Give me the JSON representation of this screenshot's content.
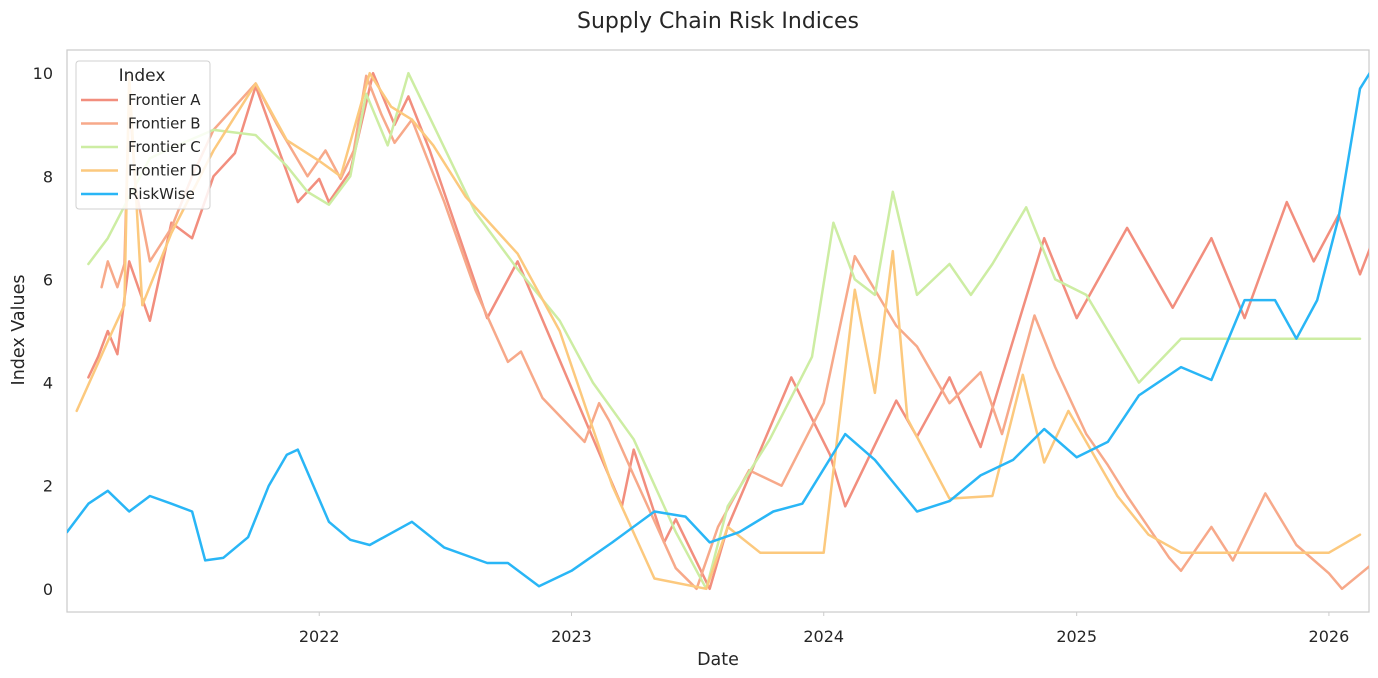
{
  "chart_data": {
    "type": "line",
    "title": "Supply Chain Risk Indices",
    "xlabel": "Date",
    "ylabel": "Index Values",
    "x_axis_type": "date",
    "xlim": [
      "2021-01-01",
      "2026-02-28"
    ],
    "ylim": [
      -0.45,
      10.45
    ],
    "x_ticks": [
      "2022-01-01",
      "2023-01-01",
      "2024-01-01",
      "2025-01-01",
      "2026-01-01"
    ],
    "x_tick_labels": [
      "2022",
      "2023",
      "2024",
      "2025",
      "2026"
    ],
    "y_ticks": [
      0,
      2,
      4,
      6,
      8,
      10
    ],
    "grid": false,
    "legend": {
      "title": "Index",
      "position": "upper-left"
    },
    "series": [
      {
        "name": "Frontier A",
        "color": "#F28E7E",
        "points": [
          [
            "2021-02-01",
            4.1
          ],
          [
            "2021-02-15",
            4.5
          ],
          [
            "2021-03-01",
            5.0
          ],
          [
            "2021-03-15",
            4.55
          ],
          [
            "2021-04-01",
            6.35
          ],
          [
            "2021-05-01",
            5.2
          ],
          [
            "2021-06-01",
            7.1
          ],
          [
            "2021-07-01",
            6.8
          ],
          [
            "2021-08-01",
            8.0
          ],
          [
            "2021-09-01",
            8.45
          ],
          [
            "2021-10-01",
            9.75
          ],
          [
            "2021-11-01",
            8.6
          ],
          [
            "2021-12-01",
            7.5
          ],
          [
            "2022-01-01",
            7.95
          ],
          [
            "2022-01-15",
            7.5
          ],
          [
            "2022-02-15",
            8.1
          ],
          [
            "2022-03-20",
            10.0
          ],
          [
            "2022-04-20",
            9.0
          ],
          [
            "2022-05-10",
            9.55
          ],
          [
            "2022-06-10",
            8.5
          ],
          [
            "2022-09-01",
            5.25
          ],
          [
            "2022-10-15",
            6.35
          ],
          [
            "2023-03-15",
            1.6
          ],
          [
            "2023-04-01",
            2.7
          ],
          [
            "2023-05-15",
            0.9
          ],
          [
            "2023-06-01",
            1.35
          ],
          [
            "2023-07-20",
            0.0
          ],
          [
            "2023-08-15",
            1.2
          ],
          [
            "2023-11-15",
            4.1
          ],
          [
            "2024-01-10",
            2.6
          ],
          [
            "2024-02-01",
            1.6
          ],
          [
            "2024-04-15",
            3.65
          ],
          [
            "2024-05-15",
            2.95
          ],
          [
            "2024-07-01",
            4.1
          ],
          [
            "2024-08-15",
            2.75
          ],
          [
            "2024-11-15",
            6.8
          ],
          [
            "2025-01-01",
            5.25
          ],
          [
            "2025-03-15",
            7.0
          ],
          [
            "2025-05-20",
            5.45
          ],
          [
            "2025-07-15",
            6.8
          ],
          [
            "2025-09-01",
            5.25
          ],
          [
            "2025-11-01",
            7.5
          ],
          [
            "2025-12-10",
            6.35
          ],
          [
            "2026-01-15",
            7.25
          ],
          [
            "2026-02-15",
            6.1
          ],
          [
            "2026-03-20",
            7.25
          ]
        ]
      },
      {
        "name": "Frontier B",
        "color": "#F7A98A",
        "points": [
          [
            "2021-02-20",
            5.85
          ],
          [
            "2021-03-01",
            6.35
          ],
          [
            "2021-03-15",
            5.85
          ],
          [
            "2021-03-25",
            6.3
          ],
          [
            "2021-04-01",
            9.6
          ],
          [
            "2021-04-10",
            7.8
          ],
          [
            "2021-05-01",
            6.35
          ],
          [
            "2021-06-01",
            7.0
          ],
          [
            "2021-07-01",
            8.0
          ],
          [
            "2021-08-01",
            8.9
          ],
          [
            "2021-10-01",
            9.8
          ],
          [
            "2021-11-01",
            9.0
          ],
          [
            "2021-12-15",
            8.0
          ],
          [
            "2022-01-10",
            8.5
          ],
          [
            "2022-02-01",
            7.95
          ],
          [
            "2022-02-20",
            8.5
          ],
          [
            "2022-03-10",
            9.95
          ],
          [
            "2022-04-01",
            9.2
          ],
          [
            "2022-04-20",
            8.65
          ],
          [
            "2022-05-15",
            9.1
          ],
          [
            "2022-07-01",
            7.5
          ],
          [
            "2022-08-15",
            5.8
          ],
          [
            "2022-10-01",
            4.4
          ],
          [
            "2022-10-20",
            4.6
          ],
          [
            "2022-11-20",
            3.7
          ],
          [
            "2023-01-20",
            2.85
          ],
          [
            "2023-02-10",
            3.6
          ],
          [
            "2023-02-25",
            3.25
          ],
          [
            "2023-04-01",
            2.2
          ],
          [
            "2023-06-01",
            0.4
          ],
          [
            "2023-07-01",
            0.0
          ],
          [
            "2023-08-01",
            1.2
          ],
          [
            "2023-09-15",
            2.3
          ],
          [
            "2023-11-01",
            2.0
          ],
          [
            "2024-01-01",
            3.6
          ],
          [
            "2024-02-15",
            6.45
          ],
          [
            "2024-04-15",
            5.1
          ],
          [
            "2024-05-15",
            4.7
          ],
          [
            "2024-07-01",
            3.6
          ],
          [
            "2024-08-15",
            4.2
          ],
          [
            "2024-09-15",
            3.0
          ],
          [
            "2024-11-01",
            5.3
          ],
          [
            "2024-12-01",
            4.3
          ],
          [
            "2025-01-15",
            3.0
          ],
          [
            "2025-02-15",
            2.4
          ],
          [
            "2025-03-15",
            1.8
          ],
          [
            "2025-05-15",
            0.6
          ],
          [
            "2025-06-01",
            0.35
          ],
          [
            "2025-07-15",
            1.2
          ],
          [
            "2025-08-15",
            0.55
          ],
          [
            "2025-10-01",
            1.85
          ],
          [
            "2025-11-15",
            0.85
          ],
          [
            "2026-01-01",
            0.3
          ],
          [
            "2026-01-20",
            0.0
          ],
          [
            "2026-03-20",
            0.65
          ]
        ]
      },
      {
        "name": "Frontier C",
        "color": "#CDEDA3",
        "points": [
          [
            "2021-02-01",
            6.3
          ],
          [
            "2021-03-01",
            6.8
          ],
          [
            "2021-04-01",
            7.6
          ],
          [
            "2021-05-01",
            8.35
          ],
          [
            "2021-06-01",
            8.55
          ],
          [
            "2021-08-01",
            8.9
          ],
          [
            "2021-10-01",
            8.8
          ],
          [
            "2021-11-15",
            8.2
          ],
          [
            "2021-12-15",
            7.7
          ],
          [
            "2022-01-15",
            7.45
          ],
          [
            "2022-02-15",
            8.0
          ],
          [
            "2022-03-10",
            9.6
          ],
          [
            "2022-04-10",
            8.6
          ],
          [
            "2022-05-10",
            10.0
          ],
          [
            "2022-06-15",
            9.0
          ],
          [
            "2022-08-15",
            7.3
          ],
          [
            "2022-10-15",
            6.2
          ],
          [
            "2022-12-15",
            5.2
          ],
          [
            "2023-02-01",
            4.0
          ],
          [
            "2023-04-01",
            2.9
          ],
          [
            "2023-06-01",
            1.1
          ],
          [
            "2023-07-15",
            0.0
          ],
          [
            "2023-08-15",
            1.6
          ],
          [
            "2023-10-15",
            2.9
          ],
          [
            "2023-12-15",
            4.5
          ],
          [
            "2024-01-15",
            7.1
          ],
          [
            "2024-02-15",
            6.0
          ],
          [
            "2024-03-15",
            5.7
          ],
          [
            "2024-04-10",
            7.7
          ],
          [
            "2024-05-15",
            5.7
          ],
          [
            "2024-07-01",
            6.3
          ],
          [
            "2024-08-01",
            5.7
          ],
          [
            "2024-09-01",
            6.3
          ],
          [
            "2024-10-20",
            7.4
          ],
          [
            "2024-12-01",
            6.0
          ],
          [
            "2025-01-15",
            5.7
          ],
          [
            "2025-04-01",
            4.0
          ],
          [
            "2025-06-01",
            4.85
          ],
          [
            "2026-01-01",
            4.85
          ],
          [
            "2026-02-15",
            4.85
          ]
        ]
      },
      {
        "name": "Frontier D",
        "color": "#FCC97E",
        "points": [
          [
            "2021-01-15",
            3.45
          ],
          [
            "2021-03-01",
            4.8
          ],
          [
            "2021-03-25",
            5.5
          ],
          [
            "2021-04-01",
            9.95
          ],
          [
            "2021-04-20",
            5.5
          ],
          [
            "2021-06-01",
            6.9
          ],
          [
            "2021-08-01",
            8.5
          ],
          [
            "2021-10-01",
            9.8
          ],
          [
            "2021-11-15",
            8.7
          ],
          [
            "2022-01-01",
            8.3
          ],
          [
            "2022-02-01",
            8.0
          ],
          [
            "2022-03-15",
            10.0
          ],
          [
            "2022-04-15",
            9.35
          ],
          [
            "2022-05-15",
            9.1
          ],
          [
            "2022-06-15",
            8.6
          ],
          [
            "2022-08-01",
            7.6
          ],
          [
            "2022-10-15",
            6.5
          ],
          [
            "2022-12-15",
            5.0
          ],
          [
            "2023-03-01",
            2.0
          ],
          [
            "2023-05-01",
            0.2
          ],
          [
            "2023-07-15",
            0.0
          ],
          [
            "2023-08-15",
            1.2
          ],
          [
            "2023-10-01",
            0.7
          ],
          [
            "2024-01-01",
            0.7
          ],
          [
            "2024-02-15",
            5.8
          ],
          [
            "2024-03-15",
            3.8
          ],
          [
            "2024-04-10",
            6.55
          ],
          [
            "2024-05-01",
            3.3
          ],
          [
            "2024-07-01",
            1.75
          ],
          [
            "2024-09-01",
            1.8
          ],
          [
            "2024-10-15",
            4.15
          ],
          [
            "2024-11-15",
            2.45
          ],
          [
            "2024-12-20",
            3.45
          ],
          [
            "2025-03-01",
            1.8
          ],
          [
            "2025-04-15",
            1.05
          ],
          [
            "2025-06-01",
            0.7
          ],
          [
            "2026-01-01",
            0.7
          ],
          [
            "2026-02-15",
            1.05
          ]
        ]
      },
      {
        "name": "RiskWise",
        "color": "#29B6F6",
        "points": [
          [
            "2021-01-01",
            1.1
          ],
          [
            "2021-02-01",
            1.65
          ],
          [
            "2021-03-01",
            1.9
          ],
          [
            "2021-04-01",
            1.5
          ],
          [
            "2021-05-01",
            1.8
          ],
          [
            "2021-06-01",
            1.65
          ],
          [
            "2021-07-01",
            1.5
          ],
          [
            "2021-07-20",
            0.55
          ],
          [
            "2021-08-15",
            0.6
          ],
          [
            "2021-09-20",
            1.0
          ],
          [
            "2021-10-20",
            2.0
          ],
          [
            "2021-11-15",
            2.6
          ],
          [
            "2021-12-01",
            2.7
          ],
          [
            "2022-01-15",
            1.3
          ],
          [
            "2022-02-15",
            0.95
          ],
          [
            "2022-03-15",
            0.85
          ],
          [
            "2022-05-15",
            1.3
          ],
          [
            "2022-07-01",
            0.8
          ],
          [
            "2022-09-01",
            0.5
          ],
          [
            "2022-10-01",
            0.5
          ],
          [
            "2022-11-15",
            0.05
          ],
          [
            "2023-01-01",
            0.35
          ],
          [
            "2023-03-01",
            0.9
          ],
          [
            "2023-05-01",
            1.5
          ],
          [
            "2023-06-15",
            1.4
          ],
          [
            "2023-07-20",
            0.9
          ],
          [
            "2023-09-01",
            1.1
          ],
          [
            "2023-10-20",
            1.5
          ],
          [
            "2023-12-01",
            1.65
          ],
          [
            "2024-02-01",
            3.0
          ],
          [
            "2024-03-15",
            2.5
          ],
          [
            "2024-05-15",
            1.5
          ],
          [
            "2024-07-01",
            1.7
          ],
          [
            "2024-08-15",
            2.2
          ],
          [
            "2024-10-01",
            2.5
          ],
          [
            "2024-11-15",
            3.1
          ],
          [
            "2025-01-01",
            2.55
          ],
          [
            "2025-02-15",
            2.85
          ],
          [
            "2025-04-01",
            3.75
          ],
          [
            "2025-06-01",
            4.3
          ],
          [
            "2025-07-15",
            4.05
          ],
          [
            "2025-09-01",
            5.6
          ],
          [
            "2025-10-15",
            5.6
          ],
          [
            "2025-11-15",
            4.85
          ],
          [
            "2025-12-15",
            5.6
          ],
          [
            "2026-01-15",
            7.2
          ],
          [
            "2026-02-15",
            9.7
          ],
          [
            "2026-03-01",
            10.0
          ]
        ]
      }
    ]
  }
}
